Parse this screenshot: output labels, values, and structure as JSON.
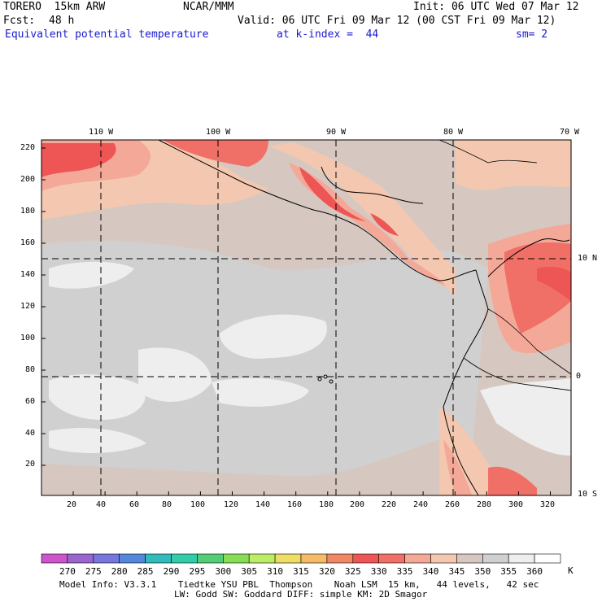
{
  "header": {
    "model": "TORERO  15km ARW",
    "center": "NCAR/MMM",
    "init": "Init: 06 UTC Wed 07 Mar 12",
    "fcst_label": "Fcst:",
    "fcst_value": "48 h",
    "valid": "Valid: 06 UTC Fri 09 Mar 12 (00 CST Fri 09 Mar 12)",
    "field": "Equivalent potential temperature",
    "level": "at k-index =  44",
    "smoothing": "sm= 2"
  },
  "map": {
    "top_lon_labels": [
      "110 W",
      "100 W",
      "90 W",
      "80 W",
      "70 W"
    ],
    "right_lat_labels": [
      "10 N",
      "0",
      "10 S"
    ],
    "left_y_ticks": [
      "220",
      "200",
      "180",
      "160",
      "140",
      "120",
      "100",
      "80",
      "60",
      "40",
      "20"
    ],
    "bottom_x_ticks": [
      "20",
      "40",
      "60",
      "80",
      "100",
      "120",
      "140",
      "160",
      "180",
      "200",
      "220",
      "240",
      "260",
      "280",
      "300",
      "320"
    ]
  },
  "colorbar": {
    "unit": "K",
    "labels": [
      "270",
      "275",
      "280",
      "285",
      "290",
      "295",
      "300",
      "305",
      "310",
      "315",
      "320",
      "325",
      "330",
      "335",
      "340",
      "345",
      "350",
      "355",
      "360"
    ],
    "colors": [
      "#cc55cc",
      "#9966cc",
      "#7777dd",
      "#5588dd",
      "#33bbbb",
      "#33ccaa",
      "#55cc77",
      "#88dd55",
      "#bbee66",
      "#eedd66",
      "#f5bb66",
      "#f08866",
      "#ee5555",
      "#f07068",
      "#f4a898",
      "#f4c8b0",
      "#d6c8c0",
      "#d0d0d0",
      "#eeeeee",
      "#ffffff"
    ]
  },
  "footer": {
    "line1": "Model Info: V3.3.1    Tiedtke YSU PBL  Thompson    Noah LSM  15 km,   44 levels,   42 sec",
    "line2": "LW: Godd SW: Goddard DIFF: simple KM: 2D Smagor"
  }
}
